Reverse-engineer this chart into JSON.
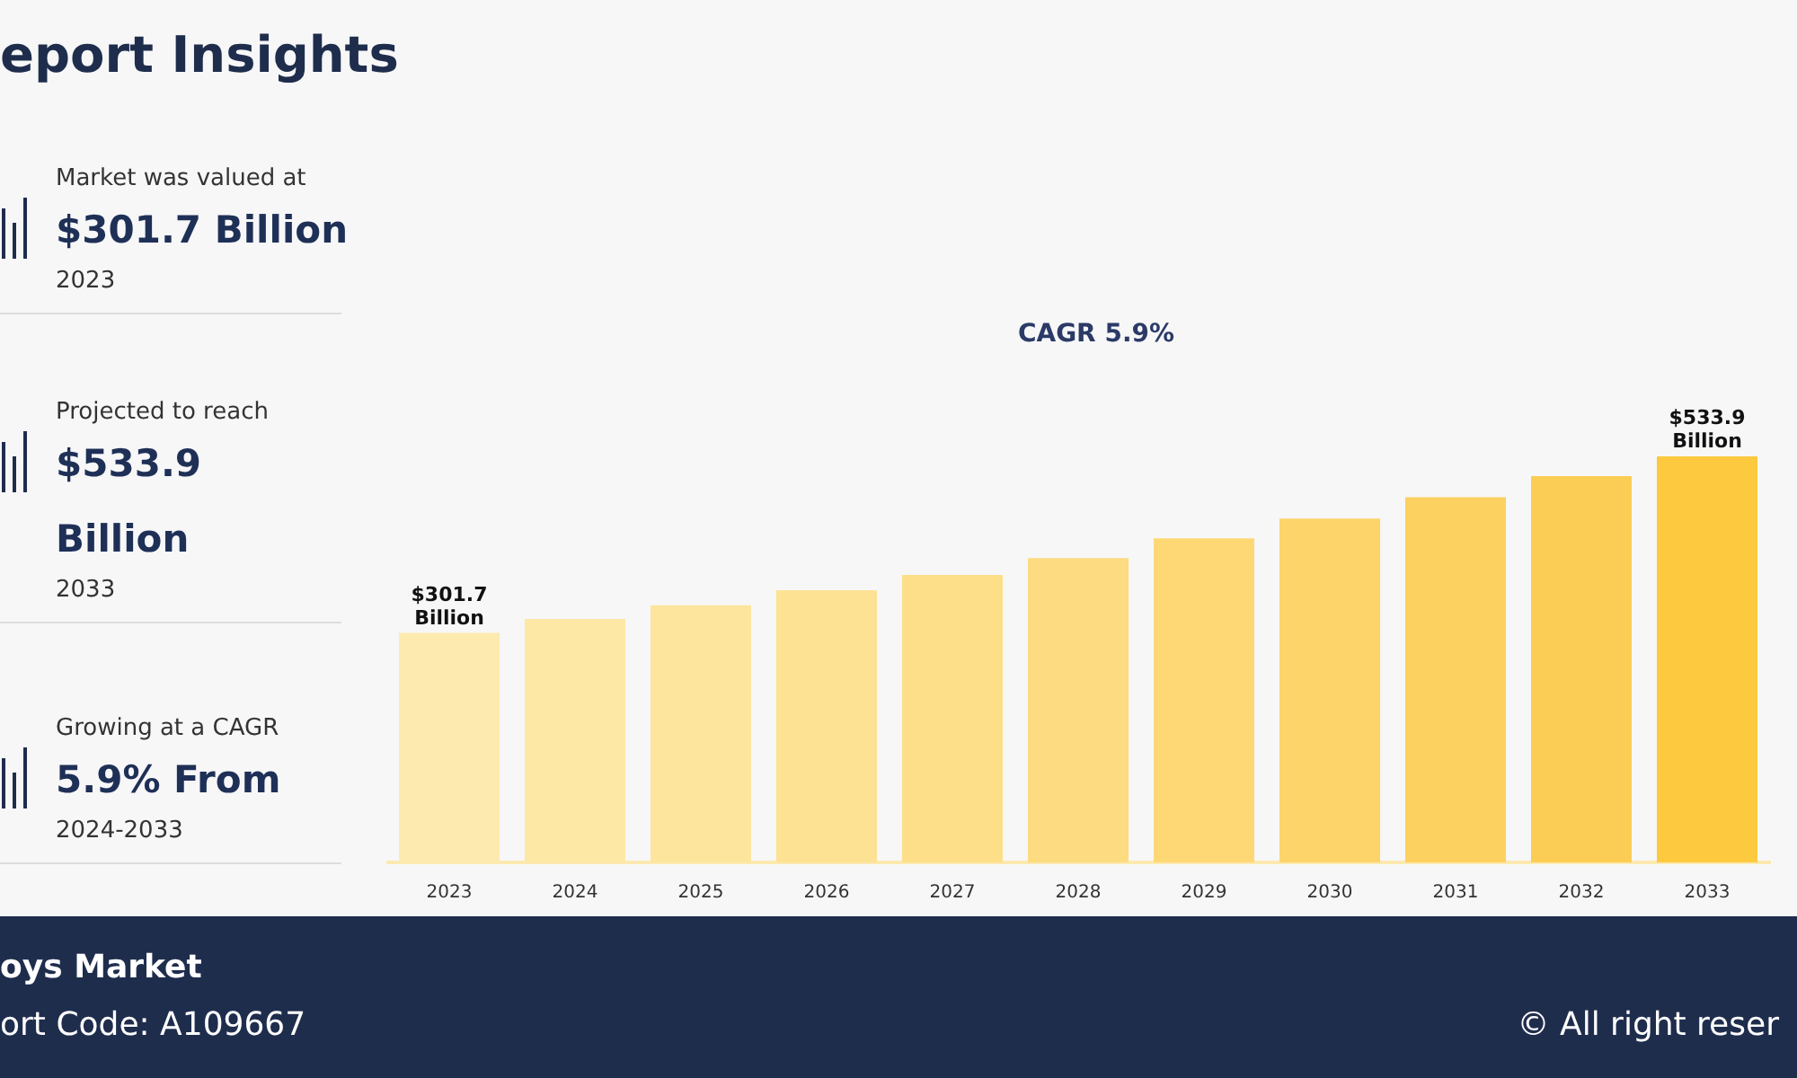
{
  "chart_data": {
    "type": "bar",
    "title": "eport Insights",
    "categories": [
      "2023",
      "2024",
      "2025",
      "2026",
      "2027",
      "2028",
      "2029",
      "2030",
      "2031",
      "2032",
      "2033"
    ],
    "values": [
      301.7,
      320,
      338,
      358,
      378,
      400,
      426,
      452,
      480,
      508,
      533.9
    ],
    "value_labels": [
      "$301.7 Billion",
      null,
      null,
      null,
      null,
      null,
      null,
      null,
      null,
      null,
      "$533.9 Billion"
    ],
    "colors": [
      "#fdeaae",
      "#fde8a6",
      "#fde59d",
      "#fde294",
      "#fddf8a",
      "#fddb80",
      "#fdd875",
      "#fdd46a",
      "#fdd160",
      "#fccd54",
      "#fcc93f"
    ],
    "annotations": [
      "Market was valued at",
      "$301.7 Billion",
      "2023",
      "Projected to reach",
      "$533.9 Billion",
      "2033",
      "Growing at a CAGR",
      "5.9% From",
      "2024-2033",
      "CAGR 5.9%",
      "oys Market",
      "ort Code: A109667",
      "© All right reser"
    ]
  }
}
